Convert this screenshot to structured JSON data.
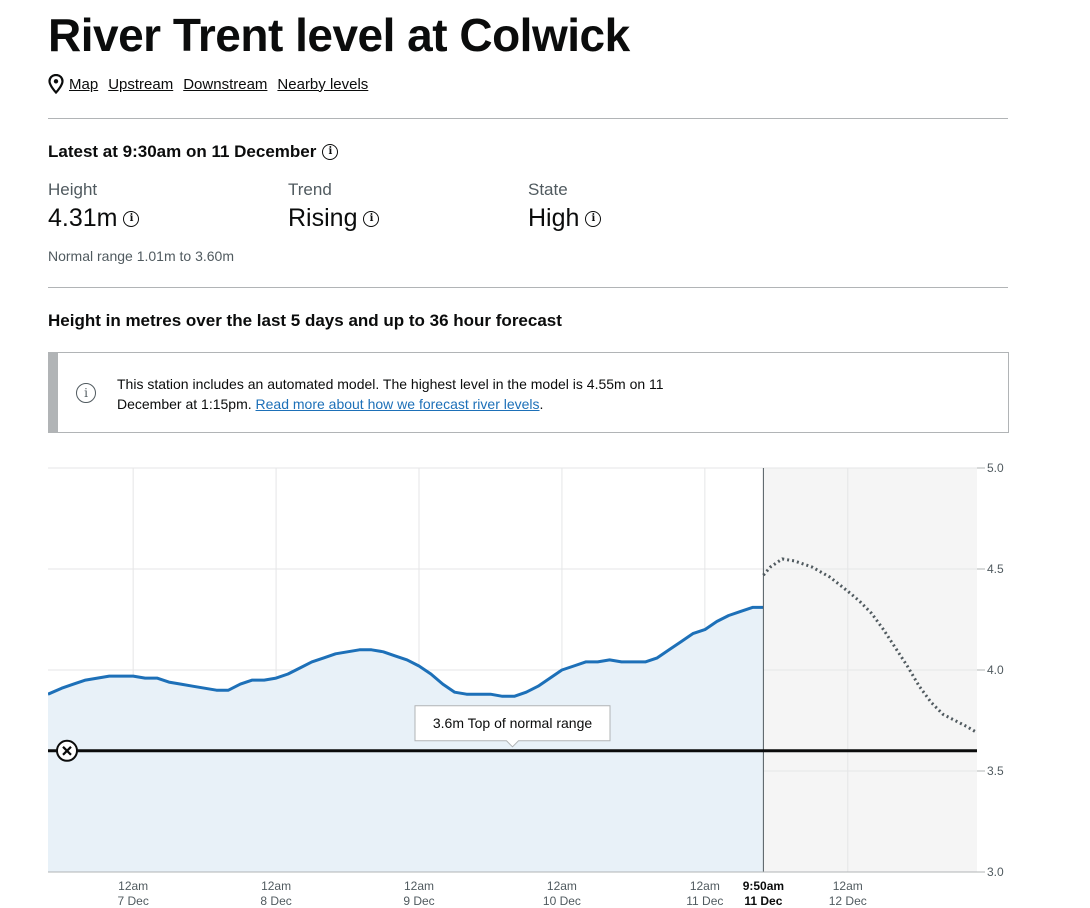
{
  "title": "River Trent level at Colwick",
  "nav_links": [
    "Map",
    "Upstream",
    "Downstream",
    "Nearby levels"
  ],
  "latest": {
    "heading": "Latest at 9:30am on 11 December",
    "height": {
      "label": "Height",
      "value": "4.31m"
    },
    "trend": {
      "label": "Trend",
      "value": "Rising"
    },
    "state": {
      "label": "State",
      "value": "High"
    },
    "normal_range": "Normal range 1.01m to 3.60m"
  },
  "chart_heading": "Height in metres over the last 5 days and up to 36 hour forecast",
  "notice": {
    "text": "This station includes an automated model. The highest level in the model is 4.55m on 11 December at 1:15pm.",
    "link": "Read more about how we forecast river levels",
    "end": "."
  },
  "colors": {
    "observed": "#1d70b8",
    "observed_fill": "#e8f1f8",
    "forecast_fill": "#f5f5f5",
    "forecast_line": "#505a5f",
    "threshold": "#0b0c0c"
  },
  "icons": [
    "map-pin-icon",
    "info-icon",
    "close-circle-icon"
  ],
  "chart_data": {
    "type": "line",
    "ylim": [
      3.0,
      5.0
    ],
    "y_ticks": [
      "3.0",
      "3.5",
      "4.0",
      "4.5",
      "5.0"
    ],
    "x_ticks": [
      {
        "t": 0,
        "top": "12am",
        "bottom": "7 Dec"
      },
      {
        "t": 24,
        "top": "12am",
        "bottom": "8 Dec"
      },
      {
        "t": 48,
        "top": "12am",
        "bottom": "9 Dec"
      },
      {
        "t": 72,
        "top": "12am",
        "bottom": "10 Dec"
      },
      {
        "t": 96,
        "top": "12am",
        "bottom": "11 Dec"
      },
      {
        "t": 105.83,
        "top": "9:50am",
        "bottom": "11 Dec",
        "bold": true
      },
      {
        "t": 120,
        "top": "12am",
        "bottom": "12 Dec"
      }
    ],
    "x_range_hours_from_7dec": [
      -14.3,
      141.7
    ],
    "now_hours_from_7dec": 105.83,
    "threshold": {
      "value": 3.6,
      "label": "3.6m Top of normal range"
    },
    "series": [
      {
        "kind": "observed",
        "points": [
          [
            -14.3,
            3.88
          ],
          [
            -12,
            3.91
          ],
          [
            -10,
            3.93
          ],
          [
            -8,
            3.95
          ],
          [
            -6,
            3.96
          ],
          [
            -4,
            3.97
          ],
          [
            -2,
            3.97
          ],
          [
            0,
            3.97
          ],
          [
            2,
            3.96
          ],
          [
            4,
            3.96
          ],
          [
            6,
            3.94
          ],
          [
            8,
            3.93
          ],
          [
            10,
            3.92
          ],
          [
            12,
            3.91
          ],
          [
            14,
            3.9
          ],
          [
            16,
            3.9
          ],
          [
            18,
            3.93
          ],
          [
            20,
            3.95
          ],
          [
            22,
            3.95
          ],
          [
            24,
            3.96
          ],
          [
            26,
            3.98
          ],
          [
            28,
            4.01
          ],
          [
            30,
            4.04
          ],
          [
            32,
            4.06
          ],
          [
            34,
            4.08
          ],
          [
            36,
            4.09
          ],
          [
            38,
            4.1
          ],
          [
            40,
            4.1
          ],
          [
            42,
            4.09
          ],
          [
            44,
            4.07
          ],
          [
            46,
            4.05
          ],
          [
            48,
            4.02
          ],
          [
            50,
            3.98
          ],
          [
            52,
            3.93
          ],
          [
            54,
            3.89
          ],
          [
            56,
            3.88
          ],
          [
            58,
            3.88
          ],
          [
            60,
            3.88
          ],
          [
            62,
            3.87
          ],
          [
            64,
            3.87
          ],
          [
            66,
            3.89
          ],
          [
            68,
            3.92
          ],
          [
            70,
            3.96
          ],
          [
            72,
            4.0
          ],
          [
            74,
            4.02
          ],
          [
            76,
            4.04
          ],
          [
            78,
            4.04
          ],
          [
            80,
            4.05
          ],
          [
            82,
            4.04
          ],
          [
            84,
            4.04
          ],
          [
            86,
            4.04
          ],
          [
            88,
            4.06
          ],
          [
            90,
            4.1
          ],
          [
            92,
            4.14
          ],
          [
            94,
            4.18
          ],
          [
            96,
            4.2
          ],
          [
            98,
            4.24
          ],
          [
            100,
            4.27
          ],
          [
            102,
            4.29
          ],
          [
            104,
            4.31
          ],
          [
            105.83,
            4.31
          ]
        ]
      },
      {
        "kind": "forecast",
        "points": [
          [
            105.83,
            4.47
          ],
          [
            107,
            4.51
          ],
          [
            109,
            4.55
          ],
          [
            111,
            4.54
          ],
          [
            114,
            4.51
          ],
          [
            117,
            4.46
          ],
          [
            120,
            4.39
          ],
          [
            122,
            4.34
          ],
          [
            124,
            4.28
          ],
          [
            126,
            4.2
          ],
          [
            128,
            4.11
          ],
          [
            130,
            4.02
          ],
          [
            132,
            3.92
          ],
          [
            134,
            3.84
          ],
          [
            136,
            3.78
          ],
          [
            138,
            3.75
          ],
          [
            140,
            3.72
          ],
          [
            141.7,
            3.69
          ]
        ]
      }
    ]
  }
}
